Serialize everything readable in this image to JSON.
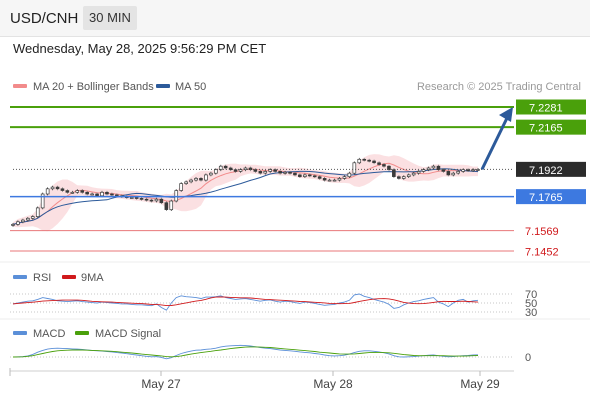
{
  "header": {
    "pair": "USD/CNH",
    "timeframe": "30 MIN"
  },
  "datetime": "Wednesday, May 28, 2025 9:56:29 PM CET",
  "legend": {
    "bollinger": {
      "label": "MA 20 + Bollinger Bands",
      "color": "#f28b8b"
    },
    "ma50": {
      "label": "MA 50",
      "color": "#2c5a9a"
    },
    "credit": "Research © 2025 Trading Central"
  },
  "chart_data": {
    "type": "candlestick",
    "price_range": [
      7.14,
      7.234
    ],
    "levels": [
      {
        "value": 7.2281,
        "label": "7.2281",
        "kind": "resistance",
        "color": "#4aa00b"
      },
      {
        "value": 7.2165,
        "label": "7.2165",
        "kind": "resistance",
        "color": "#4aa00b"
      },
      {
        "value": 7.1922,
        "label": "7.1922",
        "kind": "last",
        "color": "#2b2b2b"
      },
      {
        "value": 7.1765,
        "label": "7.1765",
        "kind": "pivot",
        "color": "#3d79e0"
      },
      {
        "value": 7.1569,
        "label": "7.1569",
        "kind": "support",
        "color": "#e8777a"
      },
      {
        "value": 7.1452,
        "label": "7.1452",
        "kind": "support",
        "color": "#e8777a"
      }
    ],
    "close": [
      7.1605,
      7.162,
      7.163,
      7.164,
      7.165,
      7.17,
      7.178,
      7.181,
      7.182,
      7.181,
      7.18,
      7.179,
      7.179,
      7.18,
      7.179,
      7.178,
      7.178,
      7.177,
      7.179,
      7.178,
      7.1775,
      7.177,
      7.1765,
      7.176,
      7.176,
      7.1755,
      7.175,
      7.1745,
      7.174,
      7.175,
      7.173,
      7.169,
      7.174,
      7.18,
      7.184,
      7.185,
      7.186,
      7.187,
      7.186,
      7.189,
      7.19,
      7.192,
      7.194,
      7.193,
      7.192,
      7.191,
      7.192,
      7.193,
      7.192,
      7.191,
      7.19,
      7.191,
      7.192,
      7.191,
      7.19,
      7.1905,
      7.19,
      7.189,
      7.188,
      7.189,
      7.1885,
      7.188,
      7.187,
      7.186,
      7.186,
      7.186,
      7.187,
      7.188,
      7.19,
      7.196,
      7.198,
      7.1975,
      7.197,
      7.196,
      7.195,
      7.194,
      7.192,
      7.188,
      7.187,
      7.188,
      7.189,
      7.19,
      7.191,
      7.192,
      7.193,
      7.194,
      7.192,
      7.191,
      7.189,
      7.19,
      7.191,
      7.192,
      7.1915,
      7.192,
      7.1922
    ],
    "projection": {
      "from": 7.1922,
      "to": 7.2281
    },
    "x_ticks": [
      "May 27",
      "May 28",
      "May 29"
    ],
    "rsi": {
      "legend": [
        {
          "name": "RSI",
          "color": "#5b8fd8"
        },
        {
          "name": "9MA",
          "color": "#d0191c"
        }
      ],
      "levels": [
        "70",
        "50",
        "30"
      ],
      "values": [
        48,
        50,
        52,
        54,
        55,
        58,
        62,
        60,
        58,
        55,
        54,
        53,
        54,
        55,
        53,
        52,
        51,
        50,
        52,
        51,
        50,
        49,
        48,
        48,
        47,
        46,
        46,
        45,
        44,
        48,
        40,
        34,
        50,
        62,
        66,
        64,
        63,
        62,
        60,
        63,
        63,
        64,
        66,
        62,
        60,
        58,
        59,
        60,
        58,
        56,
        54,
        56,
        57,
        54,
        52,
        54,
        53,
        51,
        49,
        52,
        51,
        49,
        47,
        45,
        46,
        47,
        50,
        52,
        56,
        68,
        70,
        65,
        62,
        58,
        55,
        52,
        47,
        38,
        40,
        46,
        50,
        53,
        55,
        58,
        60,
        62,
        52,
        48,
        42,
        50,
        56,
        58,
        52,
        55,
        56
      ]
    },
    "macd": {
      "legend": [
        {
          "name": "MACD",
          "color": "#5b8fd8"
        },
        {
          "name": "MACD Signal",
          "color": "#4aa00b"
        }
      ],
      "zero_label": "0",
      "values": [
        0.05,
        0.1,
        0.2,
        0.5,
        1.2,
        2.2,
        3.0,
        3.6,
        3.9,
        4.0,
        3.9,
        3.8,
        3.7,
        3.6,
        3.4,
        3.2,
        3.0,
        2.8,
        2.7,
        2.5,
        2.3,
        2.0,
        1.8,
        1.5,
        1.2,
        0.9,
        0.6,
        0.3,
        0.1,
        0.2,
        -0.2,
        -0.8,
        -0.3,
        0.7,
        1.6,
        2.2,
        2.7,
        3.1,
        3.2,
        3.5,
        3.7,
        4.0,
        4.6,
        4.9,
        5.1,
        5.2,
        5.3,
        5.2,
        5.0,
        4.7,
        4.3,
        4.0,
        3.8,
        3.5,
        3.2,
        3.0,
        2.8,
        2.6,
        2.3,
        2.1,
        1.9,
        1.6,
        1.3,
        0.9,
        0.6,
        0.5,
        0.6,
        0.8,
        1.3,
        2.0,
        2.6,
        2.8,
        2.8,
        2.6,
        2.3,
        1.9,
        1.4,
        0.6,
        0.1,
        0.0,
        0.1,
        0.2,
        0.4,
        0.6,
        0.8,
        0.9,
        0.6,
        0.3,
        0.1,
        0.2,
        0.4,
        0.6,
        0.7,
        0.9,
        1.0
      ],
      "signal": [
        0.0,
        0.05,
        0.1,
        0.3,
        0.6,
        1.1,
        1.6,
        2.1,
        2.5,
        2.8,
        3.0,
        3.1,
        3.2,
        3.2,
        3.2,
        3.1,
        3.0,
        2.9,
        2.8,
        2.7,
        2.6,
        2.4,
        2.2,
        2.0,
        1.8,
        1.6,
        1.3,
        1.1,
        0.9,
        0.7,
        0.5,
        0.2,
        0.1,
        0.2,
        0.5,
        0.9,
        1.3,
        1.7,
        2.0,
        2.3,
        2.6,
        2.9,
        3.2,
        3.5,
        3.8,
        4.1,
        4.3,
        4.5,
        4.6,
        4.6,
        4.5,
        4.4,
        4.3,
        4.1,
        3.9,
        3.7,
        3.5,
        3.3,
        3.1,
        2.9,
        2.7,
        2.5,
        2.2,
        2.0,
        1.8,
        1.6,
        1.4,
        1.3,
        1.3,
        1.4,
        1.6,
        1.8,
        2.0,
        2.1,
        2.1,
        2.0,
        1.9,
        1.7,
        1.4,
        1.1,
        0.9,
        0.7,
        0.6,
        0.6,
        0.6,
        0.6,
        0.6,
        0.6,
        0.5,
        0.4,
        0.4,
        0.4,
        0.5,
        0.6,
        0.7
      ]
    }
  }
}
